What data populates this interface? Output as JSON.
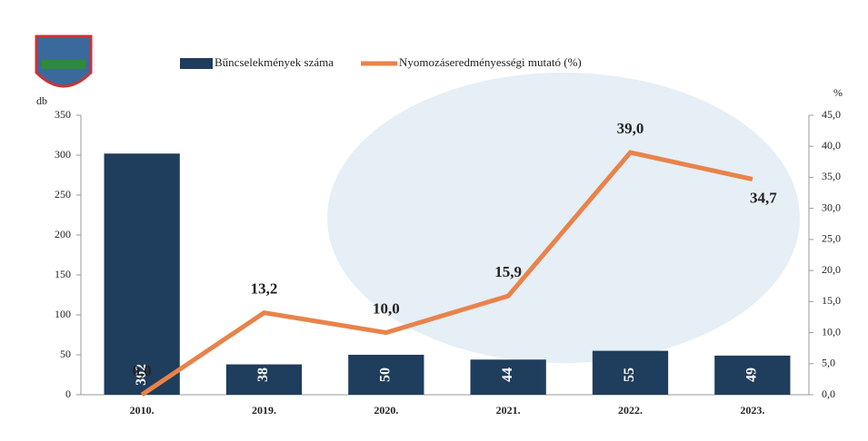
{
  "chart_data": {
    "type": "bar",
    "categories": [
      "2010.",
      "2019.",
      "2020.",
      "2021.",
      "2022.",
      "2023."
    ],
    "y_label": "db",
    "y2_label": "%",
    "ylim": [
      0,
      350
    ],
    "yticks": [
      0,
      50,
      100,
      150,
      200,
      250,
      300,
      350
    ],
    "y2lim": [
      0,
      45
    ],
    "y2ticks": [
      {
        "value": 0,
        "label": "0,0"
      },
      {
        "value": 5,
        "label": "5,0"
      },
      {
        "value": 10,
        "label": "10,0"
      },
      {
        "value": 15,
        "label": "15,0"
      },
      {
        "value": 20,
        "label": "20,0"
      },
      {
        "value": 25,
        "label": "25,0"
      },
      {
        "value": 30,
        "label": "30,0"
      },
      {
        "value": 35,
        "label": "35,0"
      },
      {
        "value": 40,
        "label": "40,0"
      },
      {
        "value": 45,
        "label": "45,0"
      }
    ],
    "series": [
      {
        "name": "Bűncselekmények száma",
        "type": "bar",
        "color": "#1f3d5c",
        "values": [
          302,
          38,
          50,
          44,
          55,
          49
        ]
      },
      {
        "name": "Nyomozáseredményességi mutató (%)",
        "type": "line",
        "axis": "y2",
        "color": "#e8834a",
        "values": [
          0.0,
          13.2,
          10.0,
          15.9,
          39.0,
          34.7
        ],
        "value_labels": [
          "0,0",
          "13,2",
          "10,0",
          "15,9",
          "39,0",
          "34,7"
        ]
      }
    ]
  }
}
